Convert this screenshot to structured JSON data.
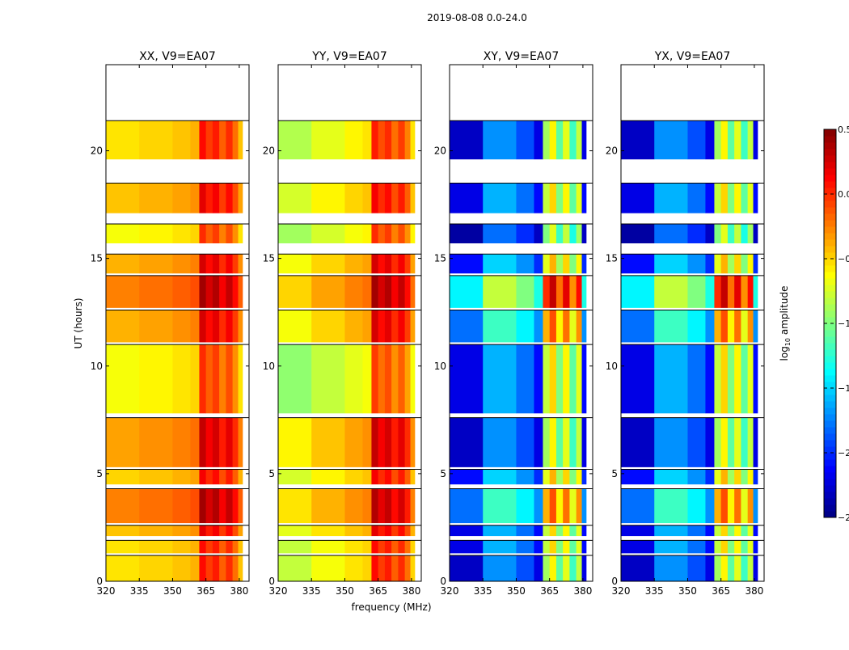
{
  "chart_data": {
    "type": "heatmap",
    "title": "2019-08-08 0.0-24.0",
    "xlabel": "frequency (MHz)",
    "ylabel": "UT (hours)",
    "colorbar_label": "log10 amplitude",
    "colormap": "jet",
    "clim": [
      -2.5,
      0.5
    ],
    "colorbar_ticks": [
      "0.5",
      "0.0",
      "−0.5",
      "−1.0",
      "−1.5",
      "−2.0",
      "−2.5"
    ],
    "colorbar_tick_values": [
      0.5,
      0.0,
      -0.5,
      -1.0,
      -1.5,
      -2.0,
      -2.5
    ],
    "xlim": [
      320,
      384.4
    ],
    "ylim": [
      0,
      24
    ],
    "xticks": [
      320,
      335,
      350,
      365,
      380
    ],
    "xtick_labels": [
      "320",
      "335",
      "350",
      "365",
      "380"
    ],
    "yticks": [
      0,
      5,
      10,
      15,
      20
    ],
    "ytick_labels": [
      "0",
      "5",
      "10",
      "15",
      "20"
    ],
    "freq_edges": [
      320,
      335,
      350,
      358,
      362,
      365,
      368,
      371,
      374,
      377,
      379.5,
      381.5
    ],
    "time_blocks": [
      {
        "start": 0.0,
        "end": 1.2,
        "offset": [
          0.0,
          0.0,
          0.0,
          0.0
        ]
      },
      {
        "start": 1.3,
        "end": 1.9,
        "offset": [
          0.0,
          0.0,
          0.1,
          0.1
        ]
      },
      {
        "start": 2.1,
        "end": 2.6,
        "offset": [
          0.1,
          0.1,
          0.1,
          0.1
        ]
      },
      {
        "start": 2.7,
        "end": 4.3,
        "offset": [
          0.3,
          0.25,
          0.5,
          0.5
        ]
      },
      {
        "start": 4.5,
        "end": 5.2,
        "offset": [
          0.05,
          0.05,
          0.2,
          0.2
        ]
      },
      {
        "start": 5.3,
        "end": 7.6,
        "offset": [
          0.2,
          0.2,
          0.0,
          0.0
        ]
      },
      {
        "start": 7.8,
        "end": 11.0,
        "offset": [
          -0.1,
          -0.15,
          0.1,
          0.1
        ]
      },
      {
        "start": 11.1,
        "end": 12.6,
        "offset": [
          0.15,
          0.15,
          0.5,
          0.5
        ]
      },
      {
        "start": 12.7,
        "end": 14.2,
        "offset": [
          0.3,
          0.3,
          0.9,
          0.9
        ]
      },
      {
        "start": 14.3,
        "end": 15.2,
        "offset": [
          0.15,
          0.15,
          0.2,
          0.2
        ]
      },
      {
        "start": 15.7,
        "end": 16.6,
        "offset": [
          -0.1,
          -0.1,
          -0.1,
          -0.1
        ]
      },
      {
        "start": 17.1,
        "end": 18.5,
        "offset": [
          0.1,
          0.05,
          0.1,
          0.1
        ]
      },
      {
        "start": 19.6,
        "end": 21.4,
        "offset": [
          0.0,
          -0.05,
          0.0,
          0.0
        ]
      }
    ],
    "panels": [
      {
        "title": "XX, V9=EA07",
        "freq_profile": [
          -0.55,
          -0.5,
          -0.45,
          -0.4,
          0.1,
          -0.05,
          0.05,
          -0.15,
          0.0,
          -0.2,
          -0.45
        ]
      },
      {
        "title": "YY, V9=EA07",
        "freq_profile": [
          -0.8,
          -0.65,
          -0.55,
          -0.5,
          0.1,
          -0.05,
          0.05,
          -0.15,
          0.0,
          -0.2,
          -0.5
        ]
      },
      {
        "title": "XY, V9=EA07",
        "freq_profile": [
          -2.3,
          -1.7,
          -1.9,
          -2.2,
          -0.9,
          -0.6,
          -1.1,
          -0.7,
          -1.2,
          -0.8,
          -2.2
        ]
      },
      {
        "title": "YX, V9=EA07",
        "freq_profile": [
          -2.3,
          -1.7,
          -1.9,
          -2.2,
          -0.9,
          -0.6,
          -1.1,
          -0.7,
          -1.2,
          -0.8,
          -2.2
        ]
      }
    ]
  }
}
